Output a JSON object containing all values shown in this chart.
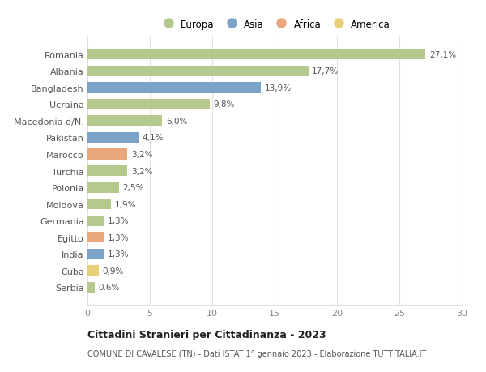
{
  "countries": [
    "Romania",
    "Albania",
    "Bangladesh",
    "Ucraina",
    "Macedonia d/N.",
    "Pakistan",
    "Marocco",
    "Turchia",
    "Polonia",
    "Moldova",
    "Germania",
    "Egitto",
    "India",
    "Cuba",
    "Serbia"
  ],
  "values": [
    27.1,
    17.7,
    13.9,
    9.8,
    6.0,
    4.1,
    3.2,
    3.2,
    2.5,
    1.9,
    1.3,
    1.3,
    1.3,
    0.9,
    0.6
  ],
  "labels": [
    "27,1%",
    "17,7%",
    "13,9%",
    "9,8%",
    "6,0%",
    "4,1%",
    "3,2%",
    "3,2%",
    "2,5%",
    "1,9%",
    "1,3%",
    "1,3%",
    "1,3%",
    "0,9%",
    "0,6%"
  ],
  "continents": [
    "Europa",
    "Europa",
    "Asia",
    "Europa",
    "Europa",
    "Asia",
    "Africa",
    "Europa",
    "Europa",
    "Europa",
    "Europa",
    "Africa",
    "Asia",
    "America",
    "Europa"
  ],
  "continent_colors": {
    "Europa": "#b5c98e",
    "Asia": "#7ba3c8",
    "Africa": "#e8a87c",
    "America": "#e8d07a"
  },
  "legend_order": [
    "Europa",
    "Asia",
    "Africa",
    "America"
  ],
  "title": "Cittadini Stranieri per Cittadinanza - 2023",
  "subtitle": "COMUNE DI CAVALESE (TN) - Dati ISTAT 1° gennaio 2023 - Elaborazione TUTTITALIA.IT",
  "xlim": [
    0,
    30
  ],
  "xticks": [
    0,
    5,
    10,
    15,
    20,
    25,
    30
  ],
  "background_color": "#ffffff",
  "grid_color": "#e0e0e0",
  "bar_height": 0.65
}
